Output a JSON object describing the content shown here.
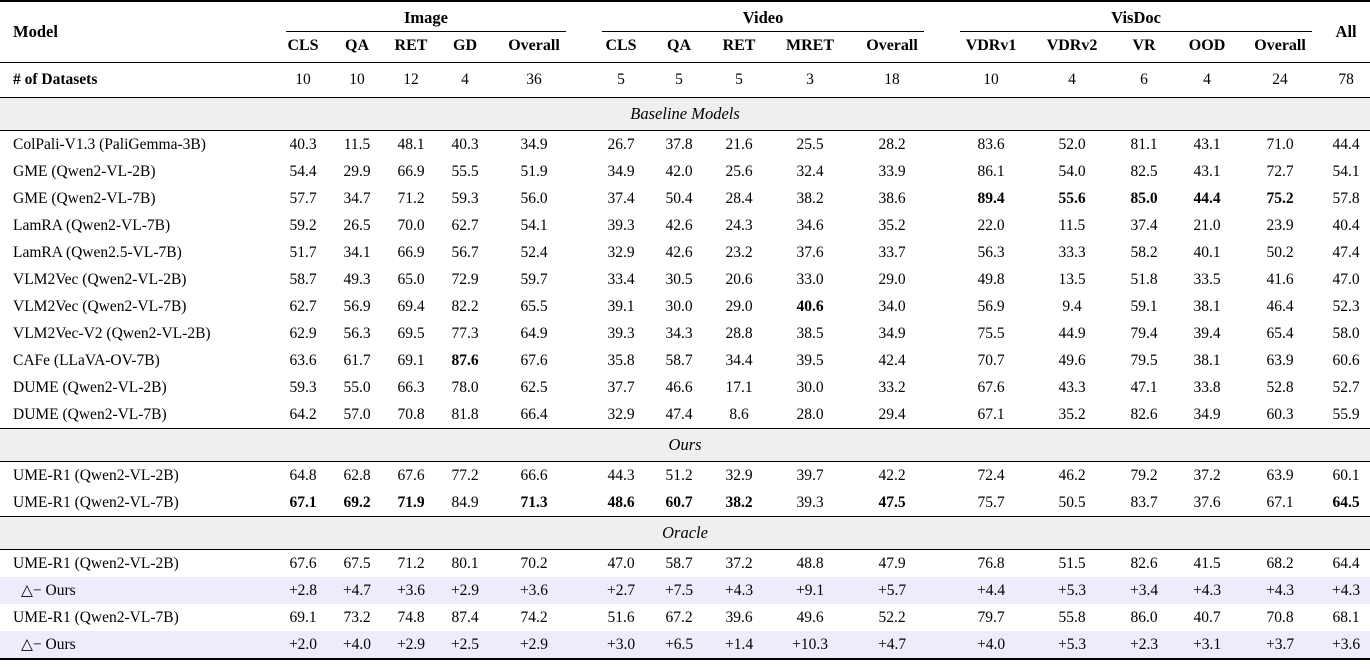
{
  "table": {
    "header": {
      "model_label": "Model",
      "all_label": "All",
      "groups": [
        {
          "label": "Image",
          "cols": [
            "CLS",
            "QA",
            "RET",
            "GD",
            "Overall"
          ]
        },
        {
          "label": "Video",
          "cols": [
            "CLS",
            "QA",
            "RET",
            "MRET",
            "Overall"
          ]
        },
        {
          "label": "VisDoc",
          "cols": [
            "VDRv1",
            "VDRv2",
            "VR",
            "OOD",
            "Overall"
          ]
        }
      ]
    },
    "datasets_row": {
      "label": "# of Datasets",
      "values": [
        "10",
        "10",
        "12",
        "4",
        "36",
        "5",
        "5",
        "5",
        "3",
        "18",
        "10",
        "4",
        "6",
        "4",
        "24",
        "78"
      ]
    },
    "sections": [
      {
        "title": "Baseline Models",
        "rows": [
          {
            "model": "ColPali-V1.3 (PaliGemma-3B)",
            "values": [
              "40.3",
              "11.5",
              "48.1",
              "40.3",
              "34.9",
              "26.7",
              "37.8",
              "21.6",
              "25.5",
              "28.2",
              "83.6",
              "52.0",
              "81.1",
              "43.1",
              "71.0",
              "44.4"
            ],
            "bold": []
          },
          {
            "model": "GME (Qwen2-VL-2B)",
            "values": [
              "54.4",
              "29.9",
              "66.9",
              "55.5",
              "51.9",
              "34.9",
              "42.0",
              "25.6",
              "32.4",
              "33.9",
              "86.1",
              "54.0",
              "82.5",
              "43.1",
              "72.7",
              "54.1"
            ],
            "bold": []
          },
          {
            "model": "GME (Qwen2-VL-7B)",
            "values": [
              "57.7",
              "34.7",
              "71.2",
              "59.3",
              "56.0",
              "37.4",
              "50.4",
              "28.4",
              "38.2",
              "38.6",
              "89.4",
              "55.6",
              "85.0",
              "44.4",
              "75.2",
              "57.8"
            ],
            "bold": [
              10,
              11,
              12,
              13,
              14
            ]
          },
          {
            "model": "LamRA (Qwen2-VL-7B)",
            "values": [
              "59.2",
              "26.5",
              "70.0",
              "62.7",
              "54.1",
              "39.3",
              "42.6",
              "24.3",
              "34.6",
              "35.2",
              "22.0",
              "11.5",
              "37.4",
              "21.0",
              "23.9",
              "40.4"
            ],
            "bold": []
          },
          {
            "model": "LamRA (Qwen2.5-VL-7B)",
            "values": [
              "51.7",
              "34.1",
              "66.9",
              "56.7",
              "52.4",
              "32.9",
              "42.6",
              "23.2",
              "37.6",
              "33.7",
              "56.3",
              "33.3",
              "58.2",
              "40.1",
              "50.2",
              "47.4"
            ],
            "bold": []
          },
          {
            "model": "VLM2Vec (Qwen2-VL-2B)",
            "values": [
              "58.7",
              "49.3",
              "65.0",
              "72.9",
              "59.7",
              "33.4",
              "30.5",
              "20.6",
              "33.0",
              "29.0",
              "49.8",
              "13.5",
              "51.8",
              "33.5",
              "41.6",
              "47.0"
            ],
            "bold": []
          },
          {
            "model": "VLM2Vec (Qwen2-VL-7B)",
            "values": [
              "62.7",
              "56.9",
              "69.4",
              "82.2",
              "65.5",
              "39.1",
              "30.0",
              "29.0",
              "40.6",
              "34.0",
              "56.9",
              "9.4",
              "59.1",
              "38.1",
              "46.4",
              "52.3"
            ],
            "bold": [
              8
            ]
          },
          {
            "model": "VLM2Vec-V2 (Qwen2-VL-2B)",
            "values": [
              "62.9",
              "56.3",
              "69.5",
              "77.3",
              "64.9",
              "39.3",
              "34.3",
              "28.8",
              "38.5",
              "34.9",
              "75.5",
              "44.9",
              "79.4",
              "39.4",
              "65.4",
              "58.0"
            ],
            "bold": []
          },
          {
            "model": "CAFe (LLaVA-OV-7B)",
            "values": [
              "63.6",
              "61.7",
              "69.1",
              "87.6",
              "67.6",
              "35.8",
              "58.7",
              "34.4",
              "39.5",
              "42.4",
              "70.7",
              "49.6",
              "79.5",
              "38.1",
              "63.9",
              "60.6"
            ],
            "bold": [
              3
            ]
          },
          {
            "model": "DUME (Qwen2-VL-2B)",
            "values": [
              "59.3",
              "55.0",
              "66.3",
              "78.0",
              "62.5",
              "37.7",
              "46.6",
              "17.1",
              "30.0",
              "33.2",
              "67.6",
              "43.3",
              "47.1",
              "33.8",
              "52.8",
              "52.7"
            ],
            "bold": []
          },
          {
            "model": "DUME (Qwen2-VL-7B)",
            "values": [
              "64.2",
              "57.0",
              "70.8",
              "81.8",
              "66.4",
              "32.9",
              "47.4",
              "8.6",
              "28.0",
              "29.4",
              "67.1",
              "35.2",
              "82.6",
              "34.9",
              "60.3",
              "55.9"
            ],
            "bold": []
          }
        ]
      },
      {
        "title": "Ours",
        "rows": [
          {
            "model": "UME-R1 (Qwen2-VL-2B)",
            "values": [
              "64.8",
              "62.8",
              "67.6",
              "77.2",
              "66.6",
              "44.3",
              "51.2",
              "32.9",
              "39.7",
              "42.2",
              "72.4",
              "46.2",
              "79.2",
              "37.2",
              "63.9",
              "60.1"
            ],
            "bold": []
          },
          {
            "model": "UME-R1 (Qwen2-VL-7B)",
            "values": [
              "67.1",
              "69.2",
              "71.9",
              "84.9",
              "71.3",
              "48.6",
              "60.7",
              "38.2",
              "39.3",
              "47.5",
              "75.7",
              "50.5",
              "83.7",
              "37.6",
              "67.1",
              "64.5"
            ],
            "bold": [
              0,
              1,
              2,
              4,
              5,
              6,
              7,
              9,
              15
            ]
          }
        ]
      },
      {
        "title": "Oracle",
        "rows": [
          {
            "model": "UME-R1 (Qwen2-VL-2B)",
            "values": [
              "67.6",
              "67.5",
              "71.2",
              "80.1",
              "70.2",
              "47.0",
              "58.7",
              "37.2",
              "48.8",
              "47.9",
              "76.8",
              "51.5",
              "82.6",
              "41.5",
              "68.2",
              "64.4"
            ],
            "bold": []
          },
          {
            "model": "△− Ours",
            "values": [
              "+2.8",
              "+4.7",
              "+3.6",
              "+2.9",
              "+3.6",
              "+2.7",
              "+7.5",
              "+4.3",
              "+9.1",
              "+5.7",
              "+4.4",
              "+5.3",
              "+3.4",
              "+4.3",
              "+4.3",
              "+4.3"
            ],
            "bold": [],
            "highlight": true
          },
          {
            "model": "UME-R1 (Qwen2-VL-7B)",
            "values": [
              "69.1",
              "73.2",
              "74.8",
              "87.4",
              "74.2",
              "51.6",
              "67.2",
              "39.6",
              "49.6",
              "52.2",
              "79.7",
              "55.8",
              "86.0",
              "40.7",
              "70.8",
              "68.1"
            ],
            "bold": []
          },
          {
            "model": "△− Ours",
            "values": [
              "+2.0",
              "+4.0",
              "+2.9",
              "+2.5",
              "+2.9",
              "+3.0",
              "+6.5",
              "+1.4",
              "+10.3",
              "+4.7",
              "+4.0",
              "+5.3",
              "+2.3",
              "+3.1",
              "+3.7",
              "+3.6"
            ],
            "bold": [],
            "highlight": true
          }
        ]
      }
    ]
  }
}
